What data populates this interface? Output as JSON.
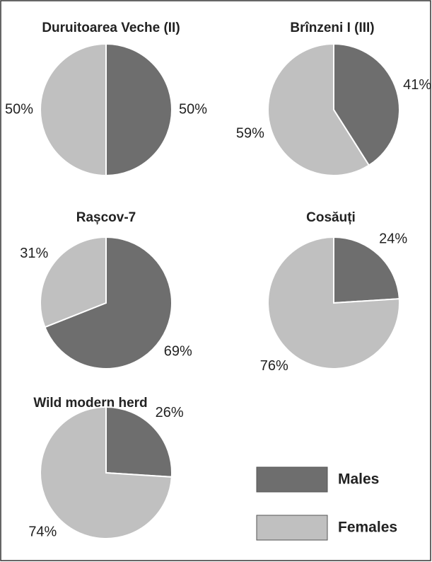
{
  "chart_data": [
    {
      "type": "pie",
      "title": "Duruitoarea Veche (II)",
      "categories": [
        "Males",
        "Females"
      ],
      "values": [
        50,
        50
      ],
      "value_labels": [
        "50%",
        "50%"
      ],
      "colors": [
        "#6e6e6e",
        "#c0c0c0"
      ]
    },
    {
      "type": "pie",
      "title": "Brînzeni I (III)",
      "categories": [
        "Males",
        "Females"
      ],
      "values": [
        41,
        59
      ],
      "value_labels": [
        "41%",
        "59%"
      ],
      "colors": [
        "#6e6e6e",
        "#c0c0c0"
      ]
    },
    {
      "type": "pie",
      "title": "Rașcov-7",
      "categories": [
        "Males",
        "Females"
      ],
      "values": [
        69,
        31
      ],
      "value_labels": [
        "69%",
        "31%"
      ],
      "colors": [
        "#6e6e6e",
        "#c0c0c0"
      ]
    },
    {
      "type": "pie",
      "title": "Cosăuți",
      "categories": [
        "Males",
        "Females"
      ],
      "values": [
        24,
        76
      ],
      "value_labels": [
        "24%",
        "76%"
      ],
      "colors": [
        "#6e6e6e",
        "#c0c0c0"
      ]
    },
    {
      "type": "pie",
      "title": "Wild modern herd",
      "categories": [
        "Males",
        "Females"
      ],
      "values": [
        26,
        74
      ],
      "value_labels": [
        "26%",
        "74%"
      ],
      "colors": [
        "#6e6e6e",
        "#c0c0c0"
      ]
    }
  ]
}
